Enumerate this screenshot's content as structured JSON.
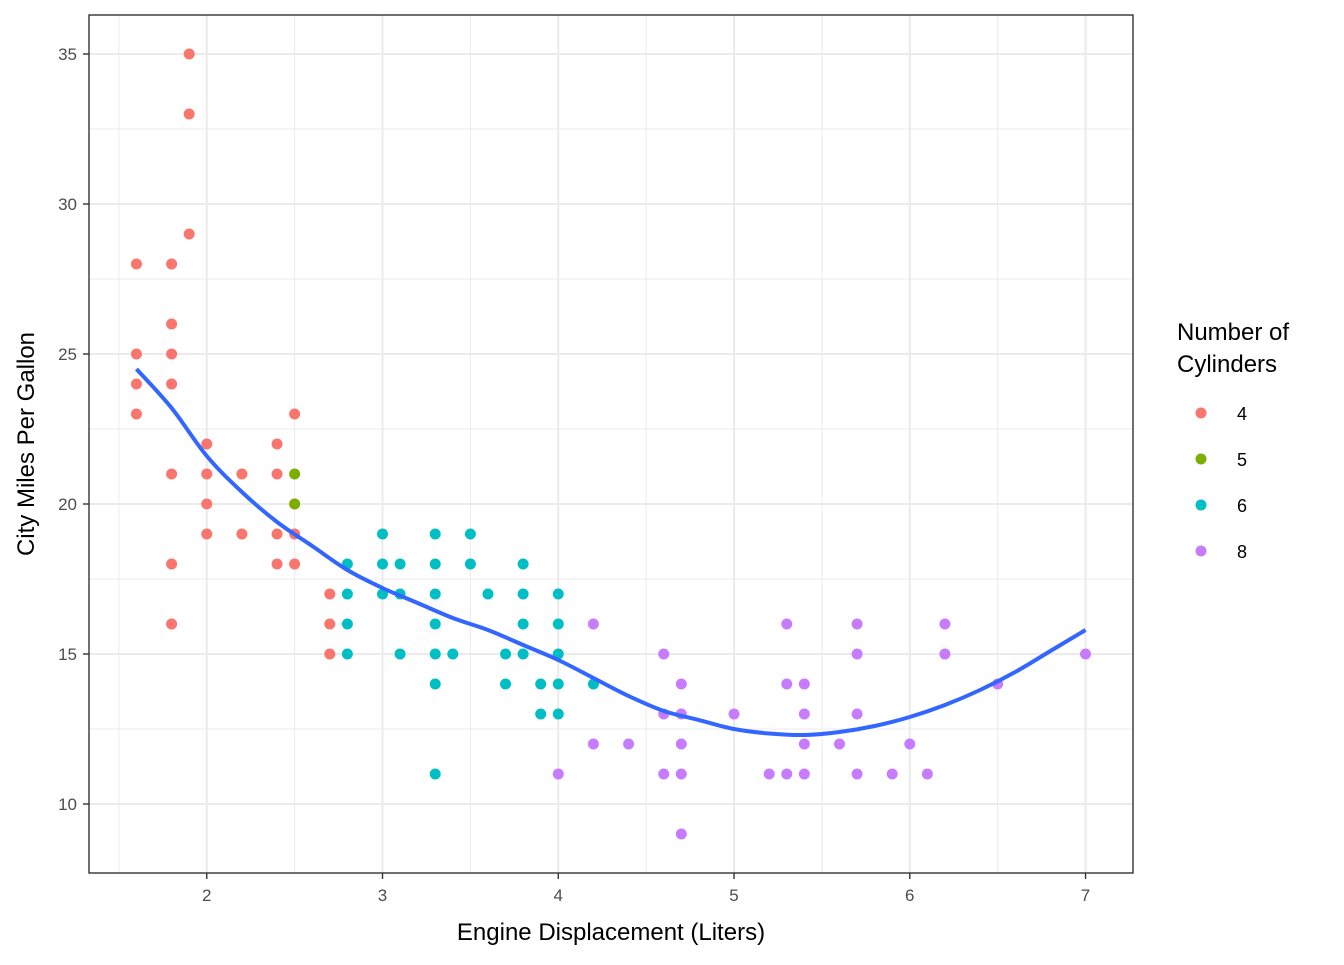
{
  "chart_data": {
    "type": "scatter",
    "title": "",
    "xlabel": "Engine Displacement (Liters)",
    "ylabel": "City Miles Per Gallon",
    "xlim": [
      1.33,
      7.27
    ],
    "ylim": [
      7.7,
      36.3
    ],
    "x_ticks": [
      2,
      3,
      4,
      5,
      6,
      7
    ],
    "y_ticks": [
      10,
      15,
      20,
      25,
      30,
      35
    ],
    "grid": true,
    "legend": {
      "title_line1": "Number of",
      "title_line2": "Cylinders",
      "placement": "right"
    },
    "series": [
      {
        "name": "4",
        "color": "#F8766D",
        "points": [
          [
            1.6,
            28
          ],
          [
            1.6,
            25
          ],
          [
            1.6,
            24
          ],
          [
            1.6,
            23
          ],
          [
            1.8,
            28
          ],
          [
            1.8,
            26
          ],
          [
            1.8,
            25
          ],
          [
            1.8,
            24
          ],
          [
            1.8,
            21
          ],
          [
            1.8,
            18
          ],
          [
            1.8,
            16
          ],
          [
            1.9,
            35
          ],
          [
            1.9,
            33
          ],
          [
            1.9,
            29
          ],
          [
            2.0,
            22
          ],
          [
            2.0,
            21
          ],
          [
            2.0,
            20
          ],
          [
            2.0,
            19
          ],
          [
            2.2,
            21
          ],
          [
            2.2,
            19
          ],
          [
            2.4,
            22
          ],
          [
            2.4,
            21
          ],
          [
            2.4,
            19
          ],
          [
            2.4,
            18
          ],
          [
            2.5,
            23
          ],
          [
            2.5,
            20
          ],
          [
            2.5,
            19
          ],
          [
            2.5,
            18
          ],
          [
            2.7,
            17
          ],
          [
            2.7,
            16
          ],
          [
            2.7,
            15
          ]
        ]
      },
      {
        "name": "5",
        "color": "#7CAE00",
        "points": [
          [
            2.5,
            21
          ],
          [
            2.5,
            20
          ]
        ]
      },
      {
        "name": "6",
        "color": "#00BFC4",
        "points": [
          [
            2.8,
            18
          ],
          [
            2.8,
            17
          ],
          [
            2.8,
            16
          ],
          [
            2.8,
            15
          ],
          [
            3.0,
            19
          ],
          [
            3.0,
            18
          ],
          [
            3.0,
            17
          ],
          [
            3.1,
            18
          ],
          [
            3.1,
            17
          ],
          [
            3.1,
            15
          ],
          [
            3.3,
            19
          ],
          [
            3.3,
            18
          ],
          [
            3.3,
            17
          ],
          [
            3.3,
            16
          ],
          [
            3.3,
            15
          ],
          [
            3.3,
            14
          ],
          [
            3.3,
            11
          ],
          [
            3.4,
            15
          ],
          [
            3.5,
            19
          ],
          [
            3.5,
            18
          ],
          [
            3.6,
            17
          ],
          [
            3.7,
            15
          ],
          [
            3.7,
            14
          ],
          [
            3.8,
            18
          ],
          [
            3.8,
            17
          ],
          [
            3.8,
            16
          ],
          [
            3.8,
            15
          ],
          [
            3.9,
            14
          ],
          [
            3.9,
            13
          ],
          [
            4.0,
            17
          ],
          [
            4.0,
            16
          ],
          [
            4.0,
            15
          ],
          [
            4.0,
            14
          ],
          [
            4.0,
            13
          ],
          [
            4.2,
            14
          ]
        ]
      },
      {
        "name": "8",
        "color": "#C77CFF",
        "points": [
          [
            4.0,
            11
          ],
          [
            4.2,
            16
          ],
          [
            4.2,
            12
          ],
          [
            4.4,
            12
          ],
          [
            4.6,
            15
          ],
          [
            4.6,
            13
          ],
          [
            4.6,
            11
          ],
          [
            4.7,
            14
          ],
          [
            4.7,
            13
          ],
          [
            4.7,
            12
          ],
          [
            4.7,
            11
          ],
          [
            4.7,
            9
          ],
          [
            5.0,
            13
          ],
          [
            5.2,
            11
          ],
          [
            5.3,
            16
          ],
          [
            5.3,
            14
          ],
          [
            5.3,
            11
          ],
          [
            5.4,
            14
          ],
          [
            5.4,
            13
          ],
          [
            5.4,
            12
          ],
          [
            5.4,
            11
          ],
          [
            5.6,
            12
          ],
          [
            5.7,
            16
          ],
          [
            5.7,
            15
          ],
          [
            5.7,
            13
          ],
          [
            5.7,
            11
          ],
          [
            5.9,
            11
          ],
          [
            6.0,
            12
          ],
          [
            6.1,
            11
          ],
          [
            6.2,
            16
          ],
          [
            6.2,
            15
          ],
          [
            6.5,
            14
          ],
          [
            7.0,
            15
          ]
        ]
      }
    ],
    "smooth": {
      "color": "#3366FF",
      "points": [
        [
          1.6,
          24.5
        ],
        [
          1.8,
          23.2
        ],
        [
          2.0,
          21.6
        ],
        [
          2.2,
          20.4
        ],
        [
          2.4,
          19.4
        ],
        [
          2.6,
          18.6
        ],
        [
          2.8,
          17.8
        ],
        [
          3.0,
          17.2
        ],
        [
          3.2,
          16.7
        ],
        [
          3.4,
          16.2
        ],
        [
          3.6,
          15.8
        ],
        [
          3.8,
          15.3
        ],
        [
          4.0,
          14.8
        ],
        [
          4.2,
          14.2
        ],
        [
          4.4,
          13.6
        ],
        [
          4.6,
          13.1
        ],
        [
          4.8,
          12.8
        ],
        [
          5.0,
          12.5
        ],
        [
          5.2,
          12.35
        ],
        [
          5.4,
          12.3
        ],
        [
          5.6,
          12.4
        ],
        [
          5.8,
          12.6
        ],
        [
          6.0,
          12.9
        ],
        [
          6.2,
          13.3
        ],
        [
          6.4,
          13.8
        ],
        [
          6.6,
          14.4
        ],
        [
          6.8,
          15.1
        ],
        [
          7.0,
          15.8
        ]
      ]
    }
  }
}
